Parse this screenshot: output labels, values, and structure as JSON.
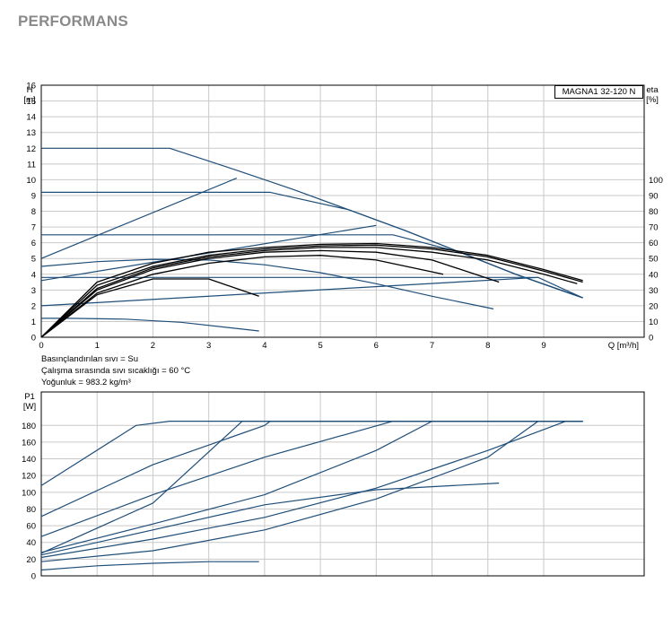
{
  "page_title": "PERFORMANS",
  "chart_data": [
    {
      "id": "hq",
      "type": "line",
      "badge": "MAGNA1 32-120 N",
      "ylabel_top": "H",
      "ylabel_bottom": "[m]",
      "y2label_top": "eta",
      "y2label_bottom": "[%]",
      "xlabel": "Q [m³/h]",
      "xlim": [
        0,
        10.8
      ],
      "ylim": [
        0,
        16
      ],
      "y2lim": [
        0,
        160
      ],
      "xticks": [
        0,
        1,
        2,
        3,
        4,
        5,
        6,
        7,
        8,
        9
      ],
      "yticks": [
        0,
        1,
        2,
        3,
        4,
        5,
        6,
        7,
        8,
        9,
        10,
        11,
        12,
        13,
        14,
        15,
        16
      ],
      "y2ticks": [
        0,
        10,
        20,
        30,
        40,
        50,
        60,
        70,
        80,
        90,
        100
      ],
      "grid": true,
      "head_curves": [
        {
          "x": [
            0,
            2.3,
            3.5,
            4.5,
            5.5,
            6.5,
            7.5,
            8.5,
            9.7
          ],
          "y": [
            12,
            12,
            10.6,
            9.4,
            8.1,
            6.8,
            5.4,
            4.0,
            2.5
          ]
        },
        {
          "x": [
            0,
            4.1,
            5.5,
            6.5,
            7.5,
            8.5,
            9.7
          ],
          "y": [
            9.2,
            9.2,
            8.1,
            6.8,
            5.4,
            4.0,
            2.5
          ]
        },
        {
          "x": [
            0,
            6.3,
            7.5,
            8.5,
            9.7
          ],
          "y": [
            6.5,
            6.5,
            5.4,
            4.0,
            2.5
          ]
        },
        {
          "x": [
            0,
            8.9,
            9.7
          ],
          "y": [
            3.8,
            3.8,
            2.5
          ]
        },
        {
          "x": [
            0,
            1,
            2,
            3,
            4,
            5,
            6,
            7,
            8.1
          ],
          "y": [
            4.5,
            4.8,
            4.95,
            4.9,
            4.6,
            4.1,
            3.4,
            2.6,
            1.8
          ]
        },
        {
          "x": [
            0,
            0.5,
            1.5,
            2.5,
            3.9
          ],
          "y": [
            1.2,
            1.2,
            1.15,
            0.95,
            0.4
          ]
        }
      ],
      "system_curves": [
        {
          "x": [
            0,
            3.5
          ],
          "y": [
            5.0,
            10.1
          ]
        },
        {
          "x": [
            0,
            6.0
          ],
          "y": [
            3.6,
            7.1
          ]
        },
        {
          "x": [
            0,
            8.9
          ],
          "y": [
            2.0,
            3.8
          ]
        }
      ],
      "eta_curves": [
        {
          "x": [
            0,
            1,
            2,
            3,
            4,
            5,
            6,
            7,
            8,
            9,
            9.7
          ],
          "y": [
            0,
            35,
            47,
            54,
            57,
            59,
            59.5,
            57,
            52,
            43,
            36
          ]
        },
        {
          "x": [
            0,
            1,
            2,
            3,
            4,
            5,
            6,
            7,
            8,
            9,
            9.7
          ],
          "y": [
            0,
            33,
            45,
            52,
            56,
            58,
            58.5,
            56,
            51,
            42,
            35
          ]
        },
        {
          "x": [
            0,
            1,
            2,
            3,
            4,
            5,
            6,
            7,
            8,
            9,
            9.6
          ],
          "y": [
            0,
            31,
            44,
            51,
            55,
            57,
            57,
            54,
            49,
            40,
            34
          ]
        },
        {
          "x": [
            0,
            1,
            2,
            3,
            4,
            5,
            6,
            7,
            8.2
          ],
          "y": [
            0,
            30,
            43,
            50,
            54,
            55,
            54,
            49,
            35
          ]
        },
        {
          "x": [
            0,
            1,
            2,
            3,
            4,
            5,
            6,
            7.2
          ],
          "y": [
            0,
            28,
            40,
            47,
            51,
            52,
            49,
            40
          ]
        },
        {
          "x": [
            0,
            1,
            2,
            3,
            3.9
          ],
          "y": [
            0,
            27,
            37,
            37,
            26
          ]
        }
      ]
    },
    {
      "id": "pq",
      "type": "line",
      "ylabel_top": "P1",
      "ylabel_bottom": "[W]",
      "xlim": [
        0,
        10.8
      ],
      "ylim": [
        0,
        220
      ],
      "yticks": [
        0,
        20,
        40,
        60,
        80,
        100,
        120,
        140,
        160,
        180
      ],
      "grid": true,
      "power_curves": [
        {
          "x": [
            0,
            1.7,
            2.3,
            9.7
          ],
          "y": [
            108,
            180,
            185,
            185
          ]
        },
        {
          "x": [
            0,
            2,
            4,
            4.1,
            9.7
          ],
          "y": [
            71,
            133,
            180,
            185,
            185
          ]
        },
        {
          "x": [
            0,
            2,
            3.6,
            9.7
          ],
          "y": [
            27,
            87,
            185,
            185
          ]
        },
        {
          "x": [
            0,
            2,
            4,
            6.3,
            9.7
          ],
          "y": [
            47,
            97,
            142,
            185,
            185
          ]
        },
        {
          "x": [
            0,
            2,
            4,
            6,
            7,
            9.7
          ],
          "y": [
            28,
            62,
            97,
            150,
            185,
            185
          ]
        },
        {
          "x": [
            0,
            2,
            4,
            6,
            8.2
          ],
          "y": [
            25,
            55,
            85,
            103,
            111
          ]
        },
        {
          "x": [
            0,
            2,
            4,
            6,
            8,
            9.4
          ],
          "y": [
            22,
            44,
            70,
            105,
            150,
            185
          ]
        },
        {
          "x": [
            0,
            2,
            4,
            6,
            8,
            8.9,
            9.7
          ],
          "y": [
            17,
            30,
            55,
            92,
            142,
            185,
            185
          ]
        },
        {
          "x": [
            0,
            1,
            2,
            3,
            3.9
          ],
          "y": [
            7,
            12,
            15,
            17,
            17
          ]
        }
      ]
    }
  ],
  "notes": {
    "fluid": "Basınçlandırılan sıvı = Su",
    "temperature": "Çalışma sırasında sıvı sıcaklığı = 60 °C",
    "density": "Yoğunluk = 983.2 kg/m³"
  },
  "colors": {
    "curve": "#1f4e79",
    "eta": "#000000",
    "grid": "#c9c9c9",
    "title": "#8a8a8a"
  }
}
